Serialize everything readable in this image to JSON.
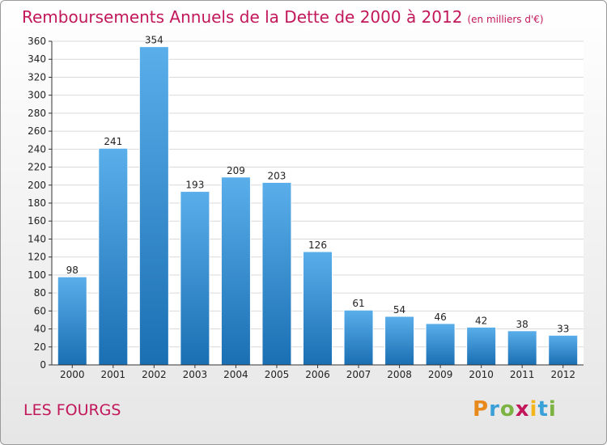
{
  "chart_data": {
    "type": "bar",
    "title": "Remboursements Annuels de la Dette de 2000 à 2012",
    "unit": "(en milliers d'€)",
    "categories": [
      "2000",
      "2001",
      "2002",
      "2003",
      "2004",
      "2005",
      "2006",
      "2007",
      "2008",
      "2009",
      "2010",
      "2011",
      "2012"
    ],
    "values": [
      98,
      241,
      354,
      193,
      209,
      203,
      126,
      61,
      54,
      46,
      42,
      38,
      33
    ],
    "ylim": [
      0,
      360
    ],
    "yticks": [
      0,
      20,
      40,
      60,
      80,
      100,
      120,
      140,
      160,
      180,
      200,
      220,
      240,
      260,
      280,
      300,
      320,
      340,
      360
    ],
    "grid": true,
    "colors": {
      "bar_light": "#5aaeea",
      "bar_dark": "#1a6fb3",
      "accent": "#c2185b"
    }
  },
  "commune": "LES FOURGS",
  "logo": {
    "letters": [
      "P",
      "r",
      "o",
      "x",
      "i",
      "t",
      "i"
    ],
    "colors": [
      "#e8891c",
      "#3aa0d8",
      "#7cb342",
      "#c2185b",
      "#f2b51c",
      "#3aa0d8",
      "#7cb342"
    ]
  }
}
